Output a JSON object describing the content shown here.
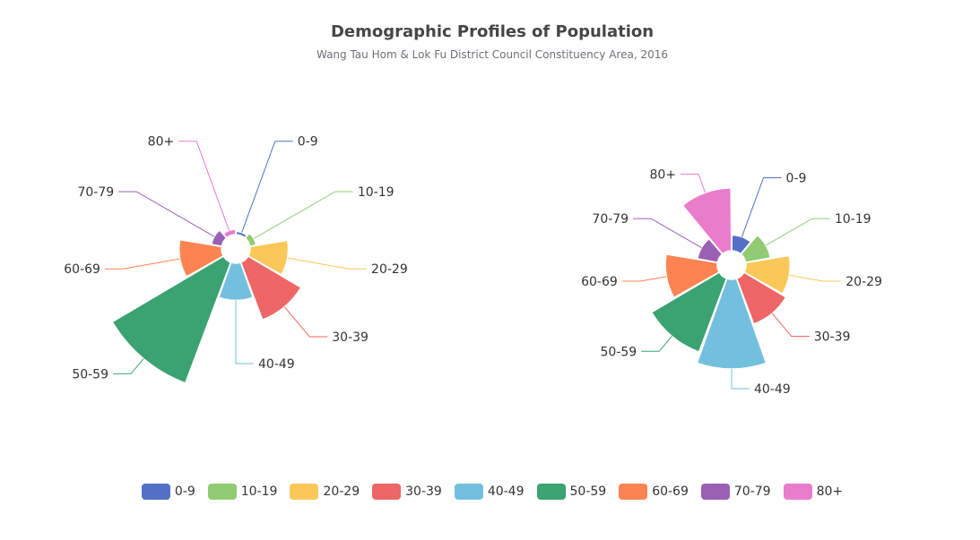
{
  "chart_data": {
    "type": "pie",
    "subtype": "rose",
    "title": "Demographic Profiles of Population",
    "subtitle": "Wang Tau Hom & Lok Fu District Council Constituency Area, 2016",
    "legend_position": "bottom",
    "categories": [
      "0-9",
      "10-19",
      "20-29",
      "30-39",
      "40-49",
      "50-59",
      "60-69",
      "70-79",
      "80+"
    ],
    "colors": [
      "#5470c6",
      "#91cc75",
      "#fac858",
      "#ee6666",
      "#73c0de",
      "#3ba272",
      "#fc8452",
      "#9a60b4",
      "#ea7ccc"
    ],
    "charts": [
      {
        "name": "Wang Tau Hom",
        "values": [
          3,
          6,
          36,
          58,
          35,
          122,
          40,
          10,
          5
        ]
      },
      {
        "name": "Lok Fu",
        "values": [
          10,
          16,
          28,
          31,
          57,
          50,
          33,
          13,
          40
        ]
      }
    ]
  }
}
